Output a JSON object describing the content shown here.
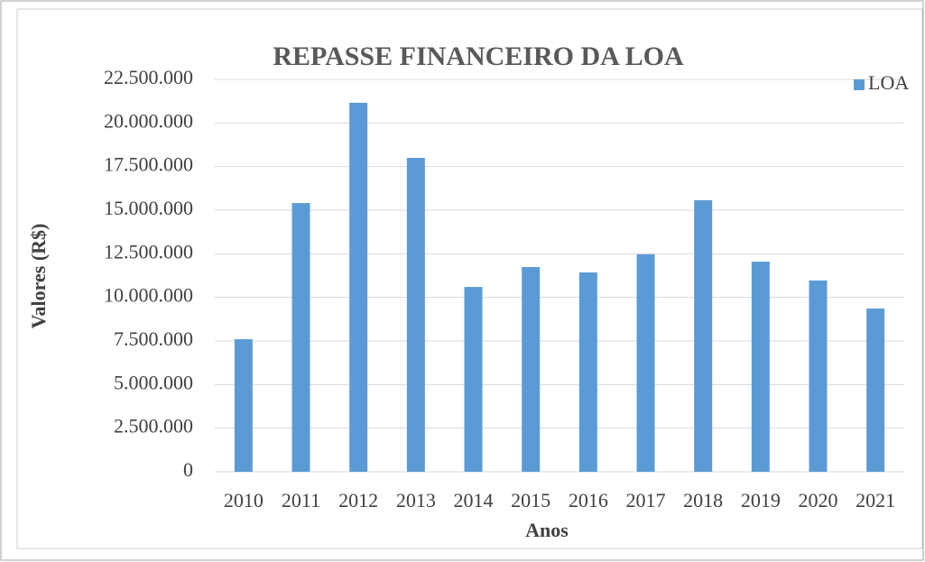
{
  "chart_data": {
    "type": "bar",
    "title": "REPASSE FINANCEIRO DA LOA",
    "x_label": "Anos",
    "y_label": "Valores (R$)",
    "categories": [
      "2010",
      "2011",
      "2012",
      "2013",
      "2014",
      "2015",
      "2016",
      "2017",
      "2018",
      "2019",
      "2020",
      "2021"
    ],
    "series": [
      {
        "name": "LOA",
        "color": "#5b9bd5",
        "values": [
          7600000,
          15410000,
          21160000,
          18000000,
          10600000,
          11740000,
          11430000,
          12470000,
          15570000,
          12050000,
          10970000,
          9360000
        ]
      }
    ],
    "ylim": [
      0,
      22500000
    ],
    "yticks": [
      0,
      {
        "value": 2500000,
        "label": "2.500.000"
      },
      {
        "value": 5000000,
        "label": "5.000.000"
      },
      {
        "value": 7500000,
        "label": "7.500.000"
      },
      {
        "value": 10000000,
        "label": "10.000.000"
      },
      {
        "value": 12500000,
        "label": "12.500.000"
      },
      {
        "value": 15000000,
        "label": "15.000.000"
      },
      {
        "value": 17500000,
        "label": "17.500.000"
      },
      {
        "value": 20000000,
        "label": "20.000.000"
      },
      {
        "value": 22500000,
        "label": "22.500.000"
      }
    ],
    "grid": true,
    "legend": "top-right"
  }
}
